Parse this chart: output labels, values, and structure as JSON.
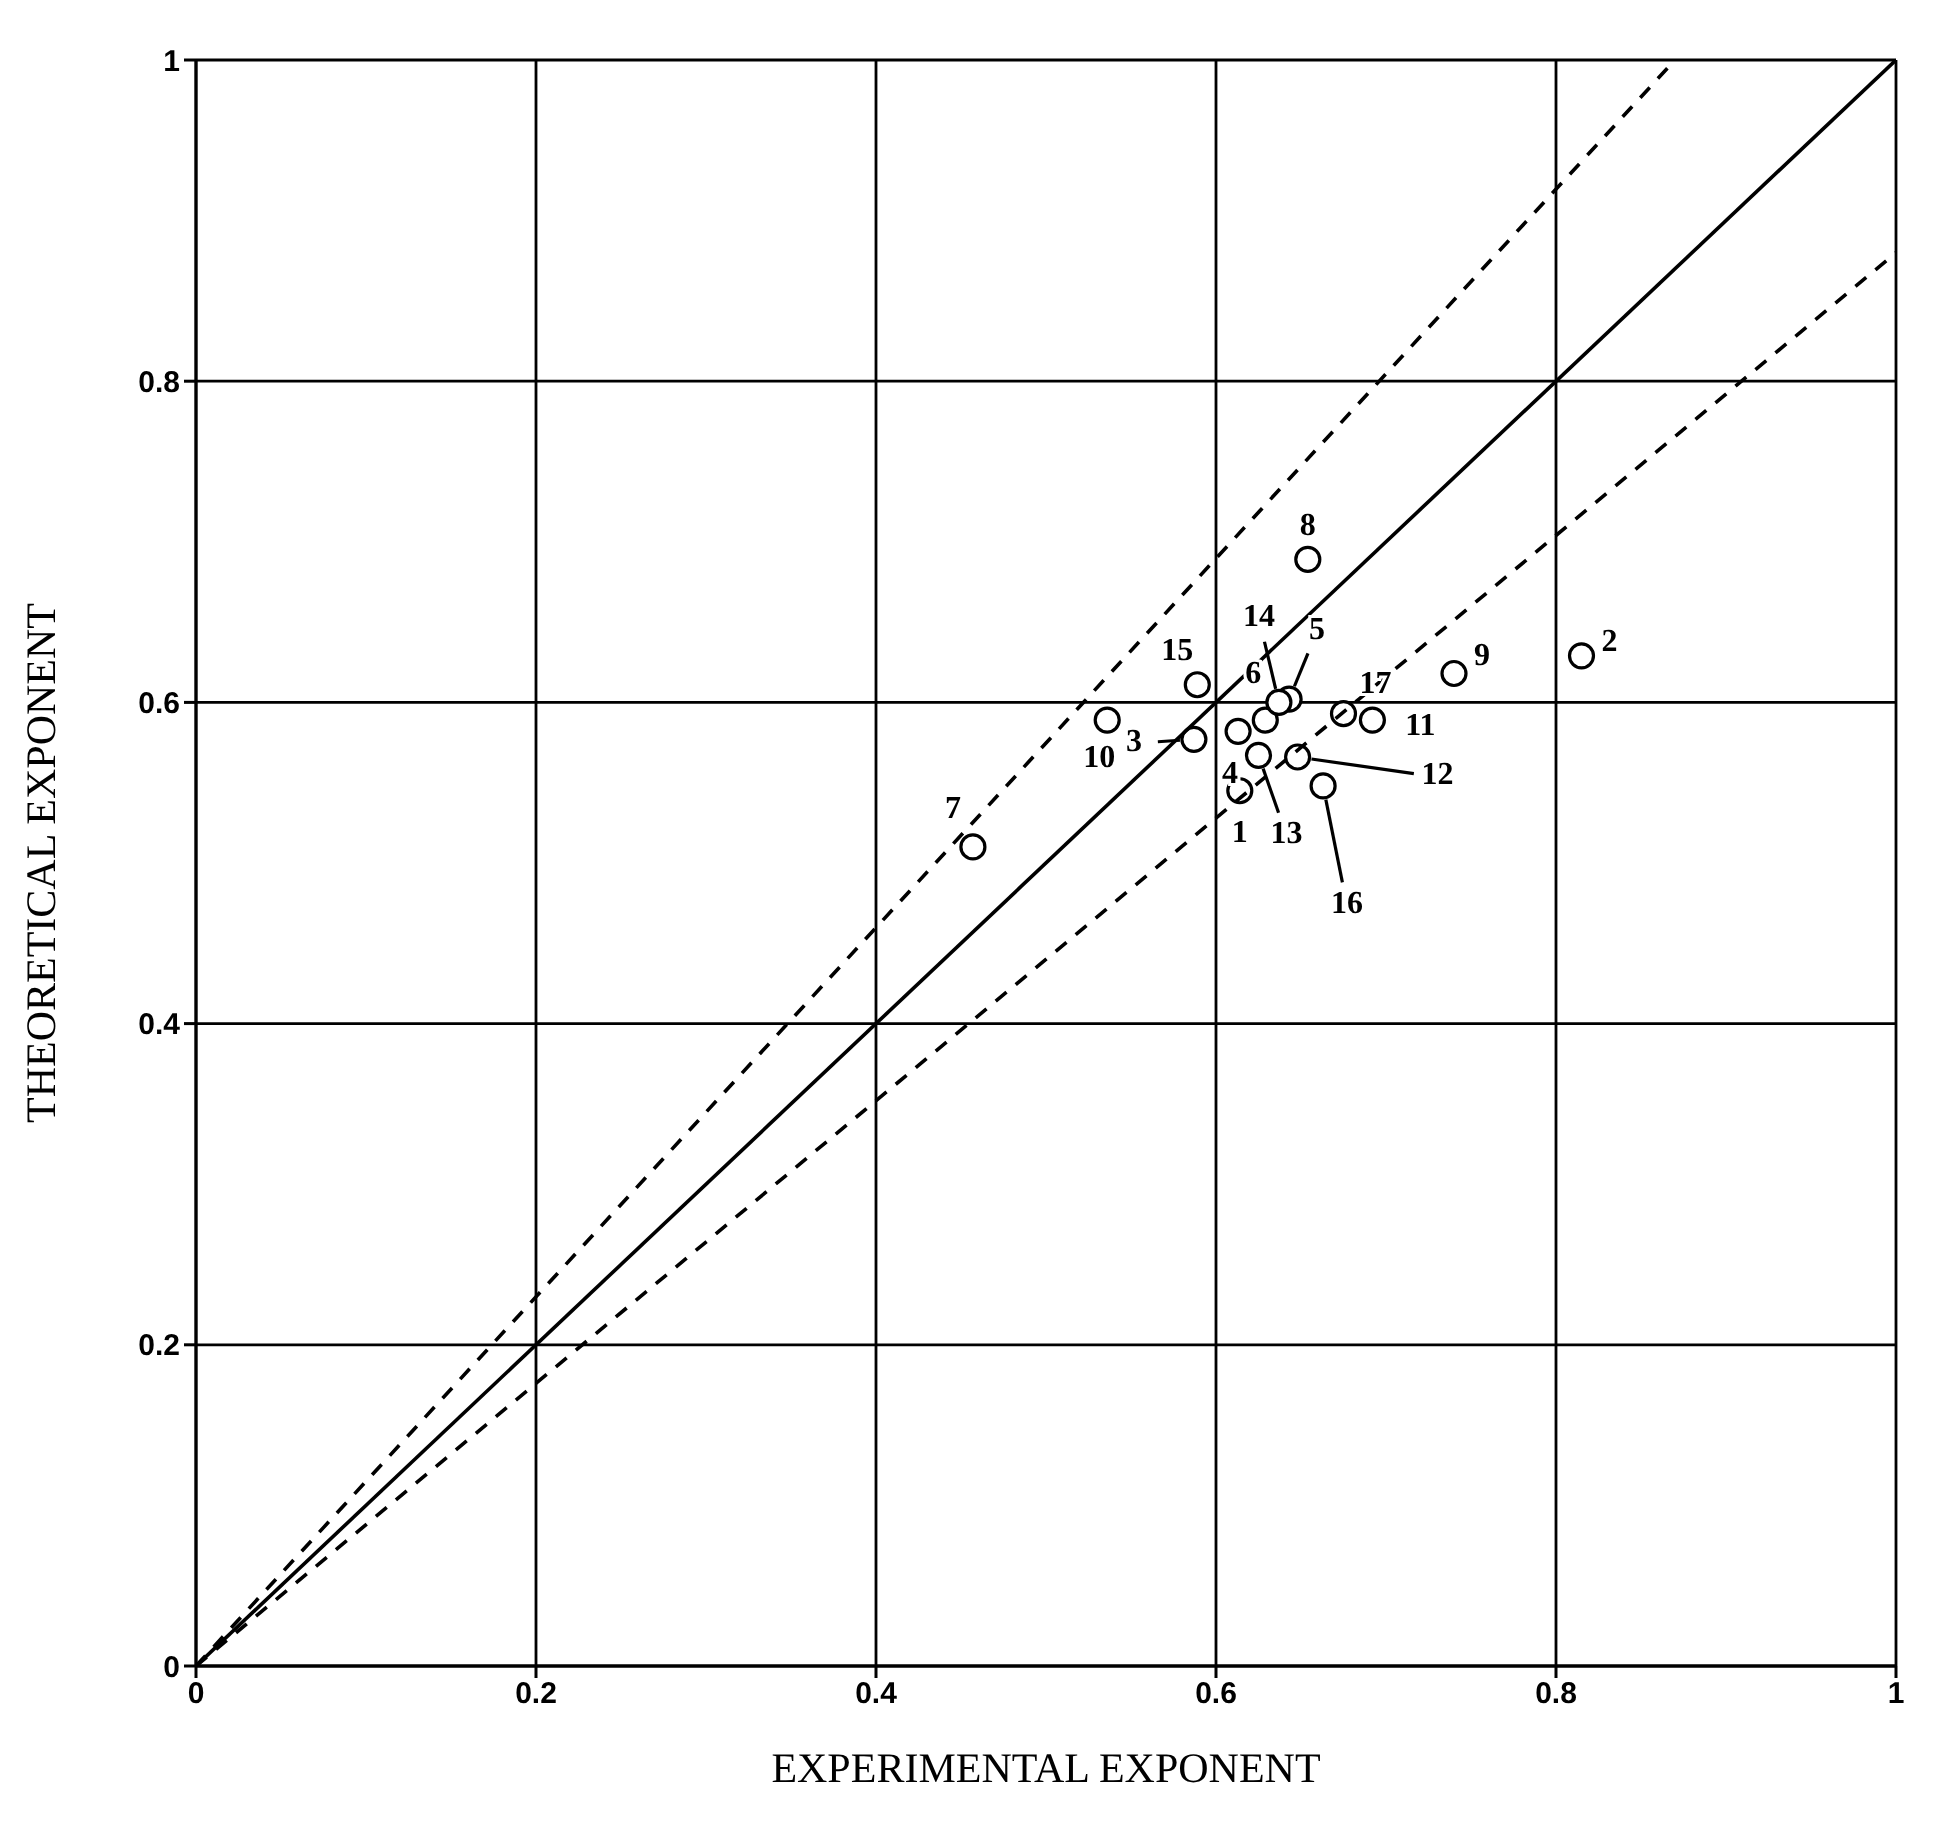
{
  "chart_data": {
    "type": "scatter",
    "xlabel": "EXPERIMENTAL EXPONENT",
    "ylabel": "THEORETICAL EXPONENT",
    "xlim": [
      0,
      1
    ],
    "ylim": [
      0,
      1
    ],
    "xticks": [
      0,
      0.2,
      0.4,
      0.6,
      0.8,
      1
    ],
    "yticks": [
      0,
      0.2,
      0.4,
      0.6,
      0.8,
      1
    ],
    "grid": true,
    "legend": false,
    "series": [
      {
        "marker": "circle",
        "color": "#000000",
        "x": [
          0.614,
          0.815,
          0.587,
          0.613,
          0.643,
          0.629,
          0.457,
          0.654,
          0.74,
          0.536,
          0.692,
          0.648,
          0.625,
          0.637,
          0.589,
          0.663,
          0.675
        ],
        "values": [
          0.545,
          0.629,
          0.577,
          0.582,
          0.602,
          0.589,
          0.51,
          0.689,
          0.618,
          0.589,
          0.589,
          0.566,
          0.567,
          0.6,
          0.611,
          0.548,
          0.593
        ]
      },
      {
        "type": "line",
        "marker": "none",
        "line_style": "solid",
        "color": "#000000",
        "x": [
          0,
          1
        ],
        "values": [
          0,
          1
        ]
      },
      {
        "type": "line",
        "marker": "none",
        "line_style": "dashed",
        "color": "#000000",
        "x": [
          0,
          0.87
        ],
        "values": [
          0,
          1
        ]
      },
      {
        "type": "line",
        "marker": "none",
        "line_style": "dashed",
        "color": "#000000",
        "x": [
          0,
          1
        ],
        "values": [
          0,
          0.88
        ]
      }
    ],
    "annotations": [
      {
        "text": "1",
        "x": 0.614,
        "y": 0.545
      },
      {
        "text": "2",
        "x": 0.815,
        "y": 0.629
      },
      {
        "text": "3",
        "x": 0.587,
        "y": 0.577
      },
      {
        "text": "4",
        "x": 0.613,
        "y": 0.582
      },
      {
        "text": "5",
        "x": 0.643,
        "y": 0.602
      },
      {
        "text": "6",
        "x": 0.629,
        "y": 0.589
      },
      {
        "text": "7",
        "x": 0.457,
        "y": 0.51
      },
      {
        "text": "8",
        "x": 0.654,
        "y": 0.689
      },
      {
        "text": "9",
        "x": 0.74,
        "y": 0.618
      },
      {
        "text": "10",
        "x": 0.536,
        "y": 0.589
      },
      {
        "text": "11",
        "x": 0.692,
        "y": 0.589
      },
      {
        "text": "12",
        "x": 0.648,
        "y": 0.566
      },
      {
        "text": "13",
        "x": 0.625,
        "y": 0.567
      },
      {
        "text": "14",
        "x": 0.637,
        "y": 0.6
      },
      {
        "text": "15",
        "x": 0.589,
        "y": 0.611
      },
      {
        "text": "16",
        "x": 0.663,
        "y": 0.548
      },
      {
        "text": "17",
        "x": 0.675,
        "y": 0.593
      }
    ]
  }
}
